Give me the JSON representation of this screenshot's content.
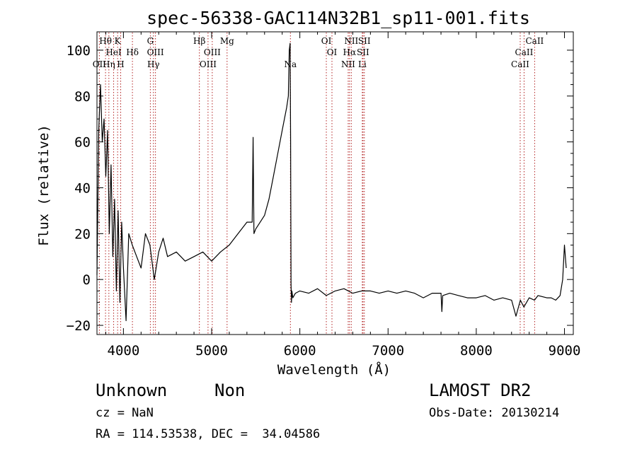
{
  "chart_data": {
    "type": "line",
    "title": "spec-56338-GAC114N32B1_sp11-001.fits",
    "xlabel": "Wavelength (Å)",
    "ylabel": "Flux (relative)",
    "xlim": [
      3700,
      9100
    ],
    "ylim": [
      -24,
      108
    ],
    "xticks": [
      4000,
      5000,
      6000,
      7000,
      8000,
      9000
    ],
    "yticks": [
      -20,
      0,
      20,
      40,
      60,
      80,
      100
    ],
    "xtick_labels": [
      "4000",
      "5000",
      "6000",
      "7000",
      "8000",
      "9000"
    ],
    "ytick_labels": [
      "−20",
      "0",
      "20",
      "40",
      "60",
      "80",
      "100"
    ],
    "grid": false,
    "line_color": "#000000",
    "marker_color": "#b22222",
    "series": [
      {
        "x": [
          3700,
          3720,
          3740,
          3760,
          3780,
          3800,
          3820,
          3840,
          3860,
          3880,
          3900,
          3920,
          3940,
          3960,
          3980,
          4000,
          4030,
          4060,
          4100,
          4150,
          4200,
          4250,
          4300,
          4350,
          4400,
          4450,
          4500,
          4600,
          4700,
          4800,
          4900,
          5000,
          5100,
          5200,
          5300,
          5400,
          5460,
          5470,
          5480,
          5500,
          5550,
          5600,
          5650,
          5700,
          5750,
          5800,
          5850,
          5870,
          5880,
          5890,
          5895,
          5900,
          5905,
          5910,
          5920,
          5950,
          6000,
          6100,
          6200,
          6300,
          6400,
          6500,
          6600,
          6700,
          6800,
          6900,
          7000,
          7100,
          7200,
          7300,
          7400,
          7500,
          7600,
          7610,
          7620,
          7700,
          7800,
          7900,
          8000,
          8100,
          8200,
          8300,
          8400,
          8450,
          8500,
          8540,
          8600,
          8660,
          8700,
          8800,
          8850,
          8900,
          8950,
          8980,
          9000,
          9020
        ],
        "y": [
          2,
          65,
          85,
          60,
          70,
          45,
          65,
          20,
          50,
          10,
          35,
          -5,
          30,
          -10,
          25,
          5,
          -18,
          20,
          15,
          10,
          5,
          20,
          15,
          0,
          12,
          18,
          10,
          12,
          8,
          10,
          12,
          8,
          12,
          15,
          20,
          25,
          25,
          62,
          20,
          22,
          25,
          28,
          35,
          45,
          55,
          65,
          75,
          80,
          100,
          103,
          60,
          -2,
          -10,
          -5,
          -8,
          -6,
          -5,
          -6,
          -4,
          -7,
          -5,
          -4,
          -6,
          -5,
          -5,
          -6,
          -5,
          -6,
          -5,
          -6,
          -8,
          -6,
          -6,
          -14,
          -7,
          -6,
          -7,
          -8,
          -8,
          -7,
          -9,
          -8,
          -9,
          -16,
          -9,
          -12,
          -8,
          -9,
          -7,
          -8,
          -8,
          -9,
          -7,
          0,
          15,
          5
        ]
      }
    ],
    "lines": [
      {
        "x": 3727,
        "label": "OII",
        "row": 3
      },
      {
        "x": 3797,
        "label": "Hθ",
        "row": 1
      },
      {
        "x": 3835,
        "label": "Hη",
        "row": 3
      },
      {
        "x": 3889,
        "label": "HeI",
        "row": 2
      },
      {
        "x": 3934,
        "label": "K",
        "row": 1
      },
      {
        "x": 3969,
        "label": "H",
        "row": 3
      },
      {
        "x": 4102,
        "label": "Hδ",
        "row": 2
      },
      {
        "x": 4305,
        "label": "G",
        "row": 1
      },
      {
        "x": 4340,
        "label": "Hγ",
        "row": 3
      },
      {
        "x": 4363,
        "label": "OIII",
        "row": 2
      },
      {
        "x": 4861,
        "label": "Hβ",
        "row": 1
      },
      {
        "x": 4959,
        "label": "OIII",
        "row": 3
      },
      {
        "x": 5007,
        "label": "OIII",
        "row": 2
      },
      {
        "x": 5175,
        "label": "Mg",
        "row": 1
      },
      {
        "x": 5893,
        "label": "Na",
        "row": 3
      },
      {
        "x": 6300,
        "label": "OI",
        "row": 1
      },
      {
        "x": 6364,
        "label": "OI",
        "row": 2
      },
      {
        "x": 6548,
        "label": "NII",
        "row": 3
      },
      {
        "x": 6563,
        "label": "Hα",
        "row": 2
      },
      {
        "x": 6583,
        "label": "NII",
        "row": 1
      },
      {
        "x": 6708,
        "label": "Li",
        "row": 3
      },
      {
        "x": 6716,
        "label": "SII",
        "row": 2
      },
      {
        "x": 6731,
        "label": "SII",
        "row": 1
      },
      {
        "x": 8498,
        "label": "CaII",
        "row": 3
      },
      {
        "x": 8542,
        "label": "CaII",
        "row": 2
      },
      {
        "x": 8662,
        "label": "CaII",
        "row": 1
      }
    ]
  },
  "info": {
    "object_class": "Unknown",
    "object_subclass": "Non",
    "survey": "LAMOST DR2",
    "cz": "cz = NaN",
    "obs_date": "Obs-Date: 20130214",
    "coords": "RA = 114.53538, DEC =  34.04586"
  }
}
